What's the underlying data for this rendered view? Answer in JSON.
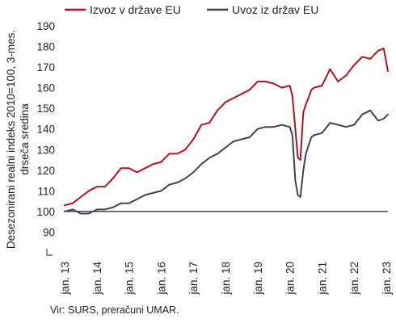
{
  "chart_data": {
    "type": "line",
    "ylabel": "Desezonirani realni indeks 2010=100, 3-mes. drseča sredina",
    "ylabel_lines": [
      "Desezonirani realni indeks 2010=100, 3-mes.",
      "drseča sredina"
    ],
    "ylim": [
      80,
      190
    ],
    "yticks": [
      90,
      100,
      110,
      120,
      130,
      140,
      150,
      160,
      170,
      180,
      190
    ],
    "xlim": [
      2013.0,
      2023.05
    ],
    "xtick_labels": [
      "jan. 13",
      "jan. 14",
      "jan. 15",
      "jan. 16",
      "jan. 17",
      "jan. 18",
      "jan. 19",
      "jan. 20",
      "jan. 21",
      "jan. 22",
      "jan. 23"
    ],
    "xtick_values": [
      2013,
      2014,
      2015,
      2016,
      2017,
      2018,
      2019,
      2020,
      2021,
      2022,
      2023
    ],
    "reference_line": 100,
    "legend_position": "top",
    "series": [
      {
        "name": "Izvoz v države EU",
        "color": "#b3121f",
        "x": [
          2013.0,
          2013.25,
          2013.5,
          2013.75,
          2014.0,
          2014.25,
          2014.5,
          2014.75,
          2015.0,
          2015.25,
          2015.5,
          2015.75,
          2016.0,
          2016.25,
          2016.5,
          2016.75,
          2017.0,
          2017.25,
          2017.5,
          2017.75,
          2018.0,
          2018.25,
          2018.5,
          2018.75,
          2019.0,
          2019.25,
          2019.5,
          2019.75,
          2020.0,
          2020.08,
          2020.17,
          2020.25,
          2020.33,
          2020.42,
          2020.5,
          2020.58,
          2020.67,
          2020.75,
          2021.0,
          2021.25,
          2021.5,
          2021.75,
          2022.0,
          2022.25,
          2022.5,
          2022.75,
          2022.92,
          2023.05
        ],
        "y": [
          103,
          104,
          107,
          110,
          112,
          112,
          116,
          121,
          121,
          119,
          121,
          123,
          124,
          128,
          128,
          130,
          135,
          142,
          143,
          149,
          153,
          155,
          157,
          159,
          163,
          163,
          162,
          160,
          161,
          156,
          140,
          126,
          125,
          148,
          152,
          155,
          159,
          160,
          161,
          169,
          163,
          166,
          171,
          175,
          174,
          178,
          179,
          168
        ]
      },
      {
        "name": "Uvoz iz držav EU",
        "color": "#3a4557",
        "x": [
          2013.0,
          2013.25,
          2013.5,
          2013.75,
          2014.0,
          2014.25,
          2014.5,
          2014.75,
          2015.0,
          2015.25,
          2015.5,
          2015.75,
          2016.0,
          2016.25,
          2016.5,
          2016.75,
          2017.0,
          2017.25,
          2017.5,
          2017.75,
          2018.0,
          2018.25,
          2018.5,
          2018.75,
          2019.0,
          2019.25,
          2019.5,
          2019.75,
          2020.0,
          2020.08,
          2020.17,
          2020.25,
          2020.33,
          2020.42,
          2020.5,
          2020.58,
          2020.67,
          2020.75,
          2021.0,
          2021.25,
          2021.5,
          2021.75,
          2022.0,
          2022.25,
          2022.5,
          2022.75,
          2022.92,
          2023.05
        ],
        "y": [
          100,
          101,
          99,
          99,
          101,
          101,
          102,
          104,
          104,
          106,
          108,
          109,
          110,
          113,
          114,
          116,
          119,
          123,
          126,
          128,
          131,
          134,
          135,
          136,
          140,
          141,
          141,
          142,
          141,
          137,
          115,
          108,
          107,
          120,
          128,
          132,
          136,
          137,
          138,
          143,
          142,
          141,
          142,
          147,
          149,
          144,
          145,
          147
        ]
      }
    ]
  },
  "source": "Vir: SURS, preračuni UMAR."
}
